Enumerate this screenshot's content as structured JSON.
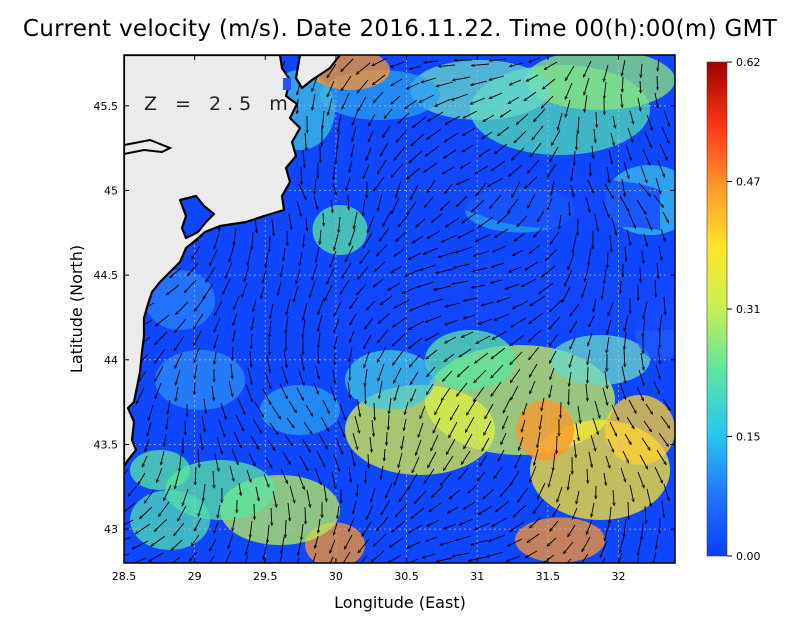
{
  "title": "Current velocity (m/s). Date 2016.11.22. Time 00(h):00(m) GMT",
  "depth_label": "Z = 2.5 m",
  "x_axis": {
    "label": "Longitude (East)",
    "range": [
      28.5,
      32.4
    ],
    "ticks": [
      28.5,
      29,
      29.5,
      30,
      30.5,
      31,
      31.5,
      32
    ],
    "tick_labels": [
      "28.5",
      "29",
      "29.5",
      "30",
      "30.5",
      "31",
      "31.5",
      "32"
    ]
  },
  "y_axis": {
    "label": "Latitude (North)",
    "range": [
      42.8,
      45.8
    ],
    "ticks": [
      43,
      43.5,
      44,
      44.5,
      45,
      45.5
    ],
    "tick_labels": [
      "43",
      "43.5",
      "44",
      "44.5",
      "45",
      "45.5"
    ]
  },
  "colorbar": {
    "range": [
      0.0,
      0.62
    ],
    "ticks": [
      0.0,
      0.15,
      0.31,
      0.47,
      0.62
    ],
    "tick_labels": [
      "0.00",
      "0.15",
      "0.31",
      "0.47",
      "0.62"
    ],
    "colors": [
      "#0a3cff",
      "#1e78ff",
      "#28c8f0",
      "#5ae6a0",
      "#c8f050",
      "#ffe628",
      "#ff9628",
      "#ff3214",
      "#a00000"
    ]
  },
  "grid": true,
  "colors": {
    "land": "#ebebeb",
    "coast": "#000000",
    "grid": "#bbbbbb"
  }
}
